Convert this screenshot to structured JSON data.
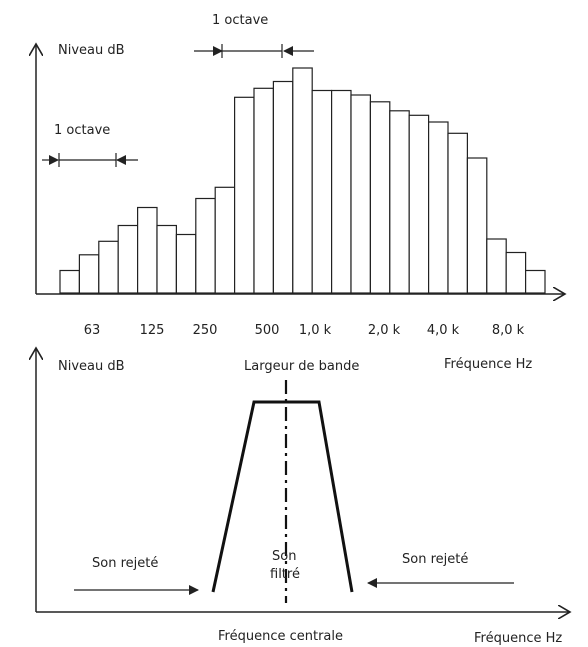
{
  "chart_data": [
    {
      "type": "bar",
      "subtype": "third-octave-band-spectrum",
      "ylabel": "Niveau dB",
      "annotations": [
        "1 octave",
        "1 octave"
      ],
      "x_tick_labels": [
        "63",
        "125",
        "250",
        "500",
        "1,0 k",
        "2,0 k",
        "4,0 k",
        "8,0 k"
      ],
      "bar_levels_relative": [
        0.1,
        0.17,
        0.23,
        0.3,
        0.38,
        0.3,
        0.26,
        0.42,
        0.47,
        0.87,
        0.91,
        0.94,
        1.0,
        0.9,
        0.9,
        0.88,
        0.85,
        0.81,
        0.79,
        0.76,
        0.71,
        0.6,
        0.24,
        0.18,
        0.1
      ],
      "grid": false
    },
    {
      "type": "line",
      "subtype": "band-pass-filter-response",
      "ylabel": "Niveau dB",
      "xlabel": "Fréquence Hz",
      "axis_note": "Fréquence Hz",
      "annotations": {
        "bandwidth": "Largeur de bande",
        "center": "Fréquence centrale",
        "filtered_line1": "Son",
        "filtered_line2": "filtré",
        "rejected_left": "Son rejeté",
        "rejected_right": "Son rejeté"
      }
    }
  ]
}
